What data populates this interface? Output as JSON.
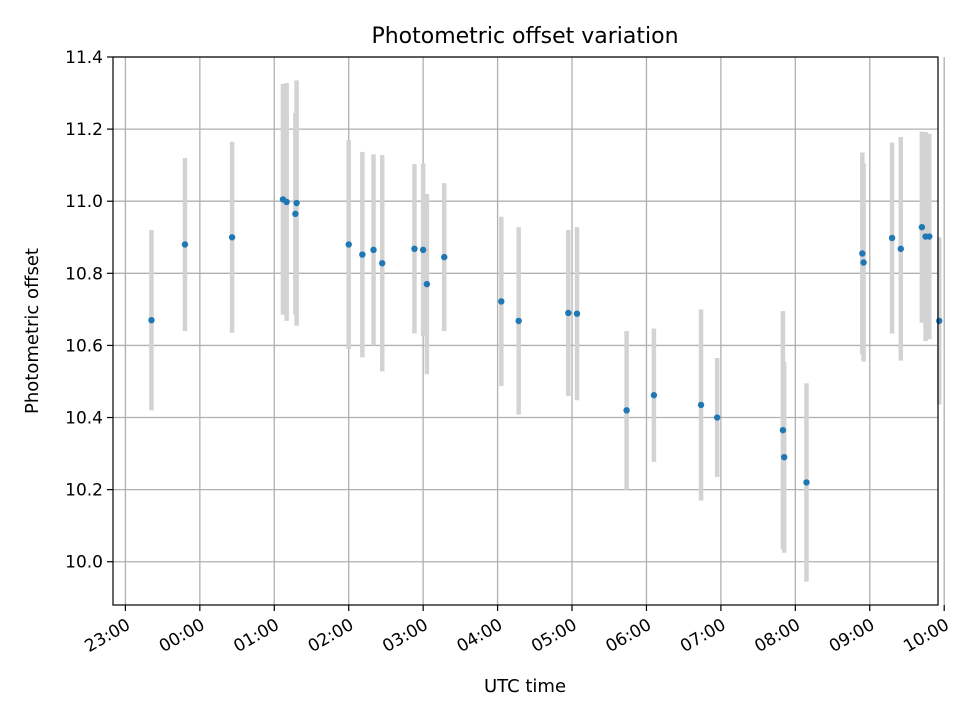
{
  "chart_data": {
    "type": "scatter",
    "title": "Photometric offset variation",
    "xlabel": "UTC time",
    "ylabel": "Photometric offset",
    "x_unit": "minutes",
    "xlim": [
      -10,
      655
    ],
    "ylim": [
      9.88,
      11.4
    ],
    "grid": true,
    "x_ticks": [
      {
        "v": 0,
        "label": "23:00"
      },
      {
        "v": 60,
        "label": "00:00"
      },
      {
        "v": 120,
        "label": "01:00"
      },
      {
        "v": 180,
        "label": "02:00"
      },
      {
        "v": 240,
        "label": "03:00"
      },
      {
        "v": 300,
        "label": "04:00"
      },
      {
        "v": 360,
        "label": "05:00"
      },
      {
        "v": 420,
        "label": "06:00"
      },
      {
        "v": 480,
        "label": "07:00"
      },
      {
        "v": 540,
        "label": "08:00"
      },
      {
        "v": 600,
        "label": "09:00"
      },
      {
        "v": 660,
        "label": "10:00"
      }
    ],
    "y_ticks": [
      {
        "v": 10.0,
        "label": "10.0"
      },
      {
        "v": 10.2,
        "label": "10.2"
      },
      {
        "v": 10.4,
        "label": "10.4"
      },
      {
        "v": 10.6,
        "label": "10.6"
      },
      {
        "v": 10.8,
        "label": "10.8"
      },
      {
        "v": 11.0,
        "label": "11.0"
      },
      {
        "v": 11.2,
        "label": "11.2"
      },
      {
        "v": 11.4,
        "label": "11.4"
      }
    ],
    "marker_color": "#1f77b4",
    "errorbar_color": "#d3d3d3",
    "points": [
      {
        "x": 21,
        "y": 10.67,
        "err": 0.25
      },
      {
        "x": 48,
        "y": 10.88,
        "err": 0.24
      },
      {
        "x": 86,
        "y": 10.9,
        "err": 0.265
      },
      {
        "x": 127,
        "y": 11.005,
        "err": 0.32
      },
      {
        "x": 130,
        "y": 10.998,
        "err": 0.33
      },
      {
        "x": 137,
        "y": 10.965,
        "err": 0.28
      },
      {
        "x": 138,
        "y": 10.995,
        "err": 0.34
      },
      {
        "x": 180,
        "y": 10.88,
        "err": 0.29
      },
      {
        "x": 191,
        "y": 10.852,
        "err": 0.285
      },
      {
        "x": 200,
        "y": 10.865,
        "err": 0.265
      },
      {
        "x": 207,
        "y": 10.828,
        "err": 0.3
      },
      {
        "x": 233,
        "y": 10.868,
        "err": 0.235
      },
      {
        "x": 240,
        "y": 10.865,
        "err": 0.24
      },
      {
        "x": 243,
        "y": 10.77,
        "err": 0.25
      },
      {
        "x": 257,
        "y": 10.845,
        "err": 0.205
      },
      {
        "x": 303,
        "y": 10.722,
        "err": 0.235
      },
      {
        "x": 317,
        "y": 10.668,
        "err": 0.26
      },
      {
        "x": 357,
        "y": 10.69,
        "err": 0.23
      },
      {
        "x": 364,
        "y": 10.688,
        "err": 0.24
      },
      {
        "x": 404,
        "y": 10.42,
        "err": 0.22
      },
      {
        "x": 426,
        "y": 10.462,
        "err": 0.185
      },
      {
        "x": 464,
        "y": 10.435,
        "err": 0.265
      },
      {
        "x": 477,
        "y": 10.4,
        "err": 0.165
      },
      {
        "x": 530,
        "y": 10.365,
        "err": 0.33
      },
      {
        "x": 531,
        "y": 10.29,
        "err": 0.265
      },
      {
        "x": 549,
        "y": 10.22,
        "err": 0.275
      },
      {
        "x": 594,
        "y": 10.855,
        "err": 0.28
      },
      {
        "x": 595,
        "y": 10.83,
        "err": 0.275
      },
      {
        "x": 618,
        "y": 10.898,
        "err": 0.265
      },
      {
        "x": 625,
        "y": 10.868,
        "err": 0.31
      },
      {
        "x": 642,
        "y": 10.928,
        "err": 0.265
      },
      {
        "x": 645,
        "y": 10.902,
        "err": 0.29
      },
      {
        "x": 648,
        "y": 10.902,
        "err": 0.285
      },
      {
        "x": 656,
        "y": 10.668,
        "err": 0.232
      }
    ]
  }
}
